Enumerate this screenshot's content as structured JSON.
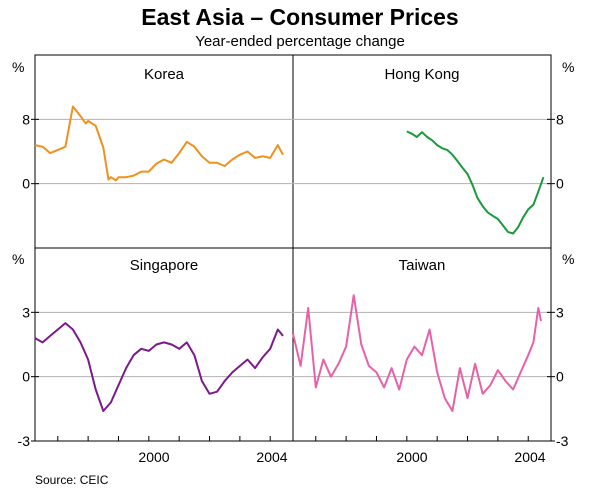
{
  "title": "East Asia – Consumer Prices",
  "subtitle": "Year-ended percentage change",
  "source": "Source: CEIC",
  "unit_label": "%",
  "x_tick_labels": [
    "2000",
    "2004"
  ],
  "chart_data": {
    "type": "line",
    "x_range": [
      1996.25,
      2004.75
    ],
    "x_ticks": [
      1997,
      1998,
      1999,
      2000,
      2001,
      2002,
      2003,
      2004
    ],
    "x_tick_labels": [
      "2000",
      "2004"
    ],
    "panels": [
      {
        "name": "Korea",
        "row": 0,
        "col": 0,
        "side": "left",
        "ylim": [
          -8,
          16
        ],
        "yticks": [
          8,
          0
        ],
        "color": "#f0901e",
        "x": [
          1996.25,
          1996.5,
          1996.75,
          1997.0,
          1997.25,
          1997.5,
          1997.75,
          1997.92,
          1998.0,
          1998.25,
          1998.5,
          1998.67,
          1998.75,
          1998.92,
          1999.0,
          1999.25,
          1999.5,
          1999.75,
          2000.0,
          2000.25,
          2000.5,
          2000.75,
          2001.0,
          2001.25,
          2001.5,
          2001.75,
          2002.0,
          2002.25,
          2002.5,
          2002.75,
          2003.0,
          2003.25,
          2003.5,
          2003.75,
          2004.0,
          2004.25,
          2004.42
        ],
        "values": [
          4.8,
          4.6,
          3.8,
          4.2,
          4.6,
          9.6,
          8.4,
          7.5,
          7.8,
          7.2,
          4.5,
          0.5,
          0.8,
          0.4,
          0.8,
          0.8,
          1.0,
          1.5,
          1.5,
          2.5,
          3.0,
          2.6,
          3.8,
          5.2,
          4.6,
          3.4,
          2.6,
          2.6,
          2.2,
          3.0,
          3.6,
          4.0,
          3.2,
          3.4,
          3.2,
          4.8,
          3.6
        ]
      },
      {
        "name": "Hong Kong",
        "row": 0,
        "col": 1,
        "side": "right",
        "ylim": [
          -8,
          16
        ],
        "yticks": [
          8,
          0
        ],
        "color": "#1a9a3a",
        "x": [
          2000.0,
          2000.17,
          2000.33,
          2000.5,
          2000.67,
          2000.83,
          2001.0,
          2001.17,
          2001.33,
          2001.5,
          2001.67,
          2001.83,
          2002.0,
          2002.17,
          2002.33,
          2002.5,
          2002.67,
          2002.83,
          2003.0,
          2003.17,
          2003.33,
          2003.5,
          2003.67,
          2003.83,
          2004.0,
          2004.17,
          2004.33,
          2004.5
        ],
        "values": [
          6.5,
          6.2,
          5.8,
          6.4,
          5.8,
          5.4,
          4.8,
          4.4,
          4.2,
          3.6,
          2.8,
          2.0,
          1.2,
          -0.2,
          -1.8,
          -2.8,
          -3.6,
          -4.0,
          -4.4,
          -5.2,
          -6.0,
          -6.2,
          -5.4,
          -4.2,
          -3.2,
          -2.6,
          -1.0,
          0.8
        ]
      },
      {
        "name": "Singapore",
        "row": 1,
        "col": 0,
        "side": "left",
        "ylim": [
          -3,
          6
        ],
        "yticks": [
          3,
          0,
          -3
        ],
        "color": "#7a1a8c",
        "x": [
          1996.25,
          1996.5,
          1996.75,
          1997.0,
          1997.25,
          1997.5,
          1997.75,
          1998.0,
          1998.25,
          1998.5,
          1998.75,
          1999.0,
          1999.25,
          1999.5,
          1999.75,
          2000.0,
          2000.25,
          2000.5,
          2000.75,
          2001.0,
          2001.25,
          2001.5,
          2001.75,
          2002.0,
          2002.25,
          2002.5,
          2002.75,
          2003.0,
          2003.25,
          2003.5,
          2003.75,
          2004.0,
          2004.25,
          2004.42
        ],
        "values": [
          1.8,
          1.6,
          1.9,
          2.2,
          2.5,
          2.2,
          1.6,
          0.8,
          -0.6,
          -1.6,
          -1.2,
          -0.4,
          0.4,
          1.0,
          1.3,
          1.2,
          1.5,
          1.6,
          1.5,
          1.3,
          1.6,
          1.0,
          -0.2,
          -0.8,
          -0.7,
          -0.2,
          0.2,
          0.5,
          0.8,
          0.4,
          0.9,
          1.3,
          2.2,
          1.9
        ]
      },
      {
        "name": "Taiwan",
        "row": 1,
        "col": 1,
        "side": "right",
        "ylim": [
          -3,
          6
        ],
        "yticks": [
          3,
          0,
          -3
        ],
        "color": "#e861a8",
        "x": [
          1996.25,
          1996.5,
          1996.75,
          1997.0,
          1997.25,
          1997.5,
          1997.75,
          1998.0,
          1998.25,
          1998.5,
          1998.75,
          1999.0,
          1999.25,
          1999.5,
          1999.75,
          2000.0,
          2000.25,
          2000.5,
          2000.75,
          2001.0,
          2001.25,
          2001.5,
          2001.75,
          2002.0,
          2002.25,
          2002.5,
          2002.75,
          2003.0,
          2003.25,
          2003.5,
          2003.75,
          2004.0,
          2004.17,
          2004.33,
          2004.42
        ],
        "values": [
          2.0,
          0.5,
          3.2,
          -0.5,
          0.8,
          0.0,
          0.6,
          1.4,
          3.8,
          1.5,
          0.5,
          0.2,
          -0.5,
          0.4,
          -0.6,
          0.8,
          1.4,
          1.0,
          2.2,
          0.2,
          -1.0,
          -1.6,
          0.4,
          -1.0,
          0.6,
          -0.8,
          -0.4,
          0.3,
          -0.2,
          -0.6,
          0.2,
          1.0,
          1.6,
          3.2,
          2.6
        ]
      }
    ]
  }
}
